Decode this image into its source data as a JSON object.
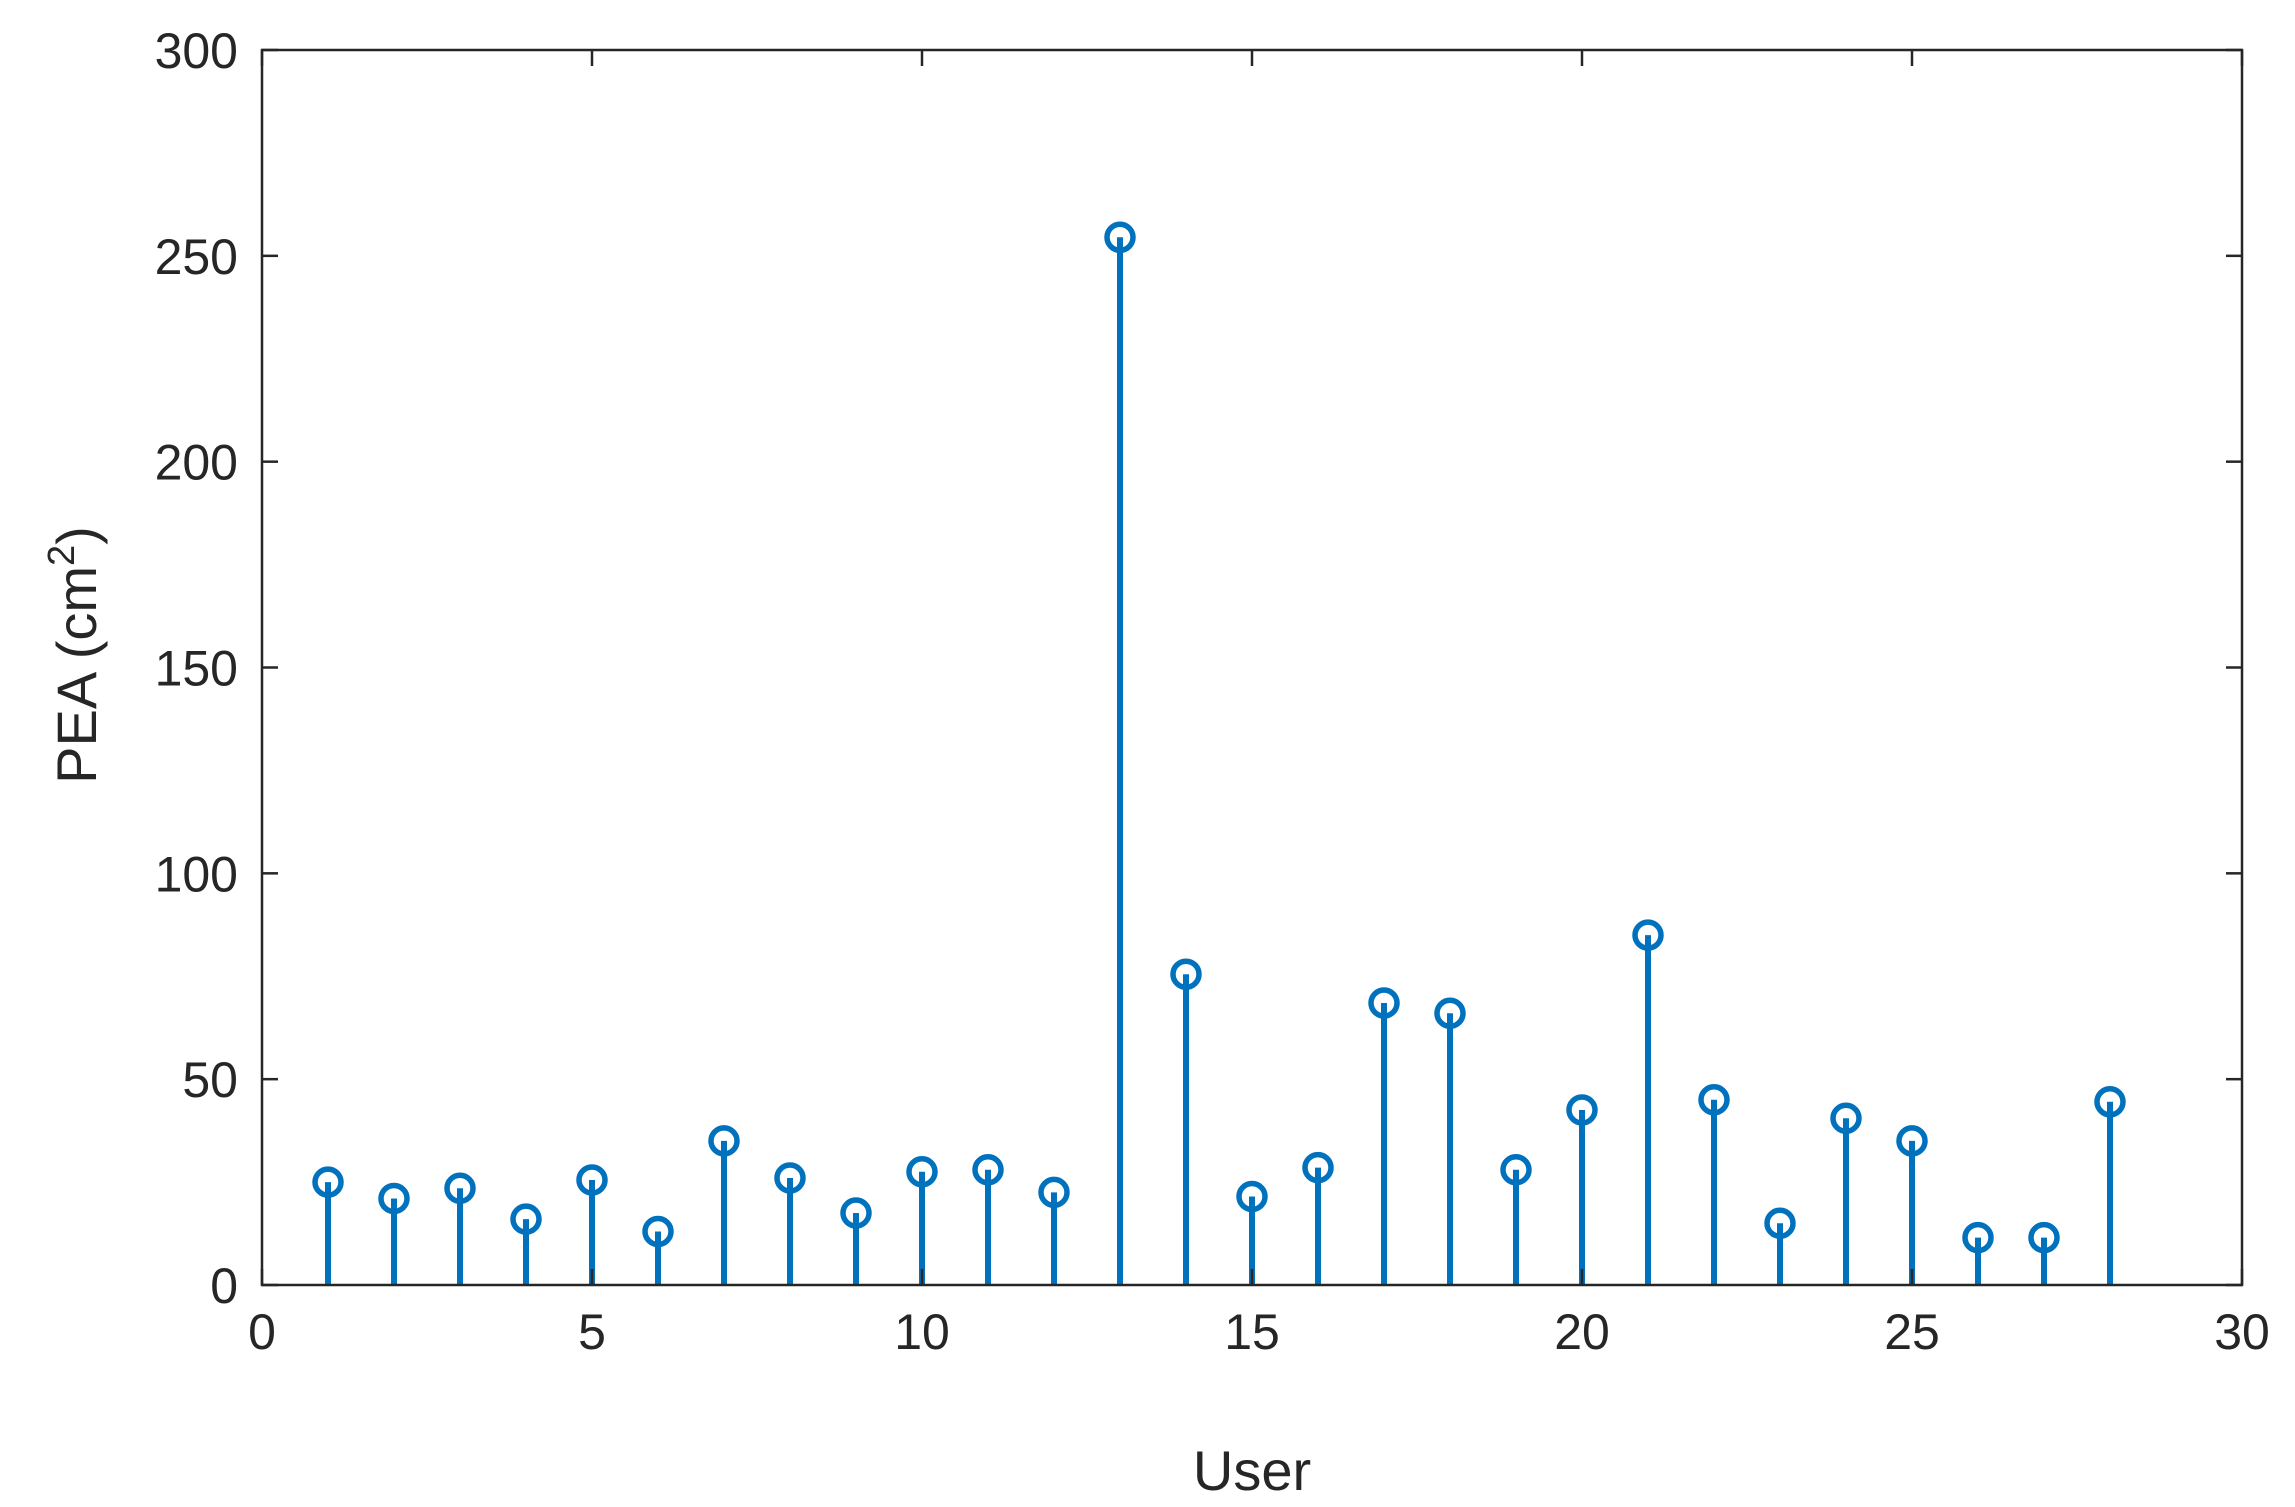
{
  "chart_data": {
    "type": "stem",
    "xlabel": "User",
    "ylabel": "PEA (cm",
    "ylabel_superscript": "2",
    "ylabel_suffix": ")",
    "xlim": [
      0,
      30
    ],
    "ylim": [
      0,
      300
    ],
    "xticks": [
      0,
      5,
      10,
      15,
      20,
      25,
      30
    ],
    "yticks": [
      0,
      50,
      100,
      150,
      200,
      250,
      300
    ],
    "grid": false,
    "color": "#0072BD",
    "series": [
      {
        "x": [
          1,
          2,
          3,
          4,
          5,
          6,
          7,
          8,
          9,
          10,
          11,
          12,
          13,
          14,
          15,
          16,
          17,
          18,
          19,
          20,
          21,
          22,
          23,
          24,
          25,
          26,
          27,
          28
        ],
        "y": [
          25,
          21,
          23.5,
          16,
          25.5,
          13,
          35,
          26,
          17.5,
          27.5,
          28,
          22.5,
          254.5,
          75.5,
          21.5,
          28.5,
          68.5,
          66,
          28,
          42.5,
          85,
          45,
          15,
          40.5,
          35,
          11.5,
          11.5,
          44.5
        ]
      }
    ]
  }
}
